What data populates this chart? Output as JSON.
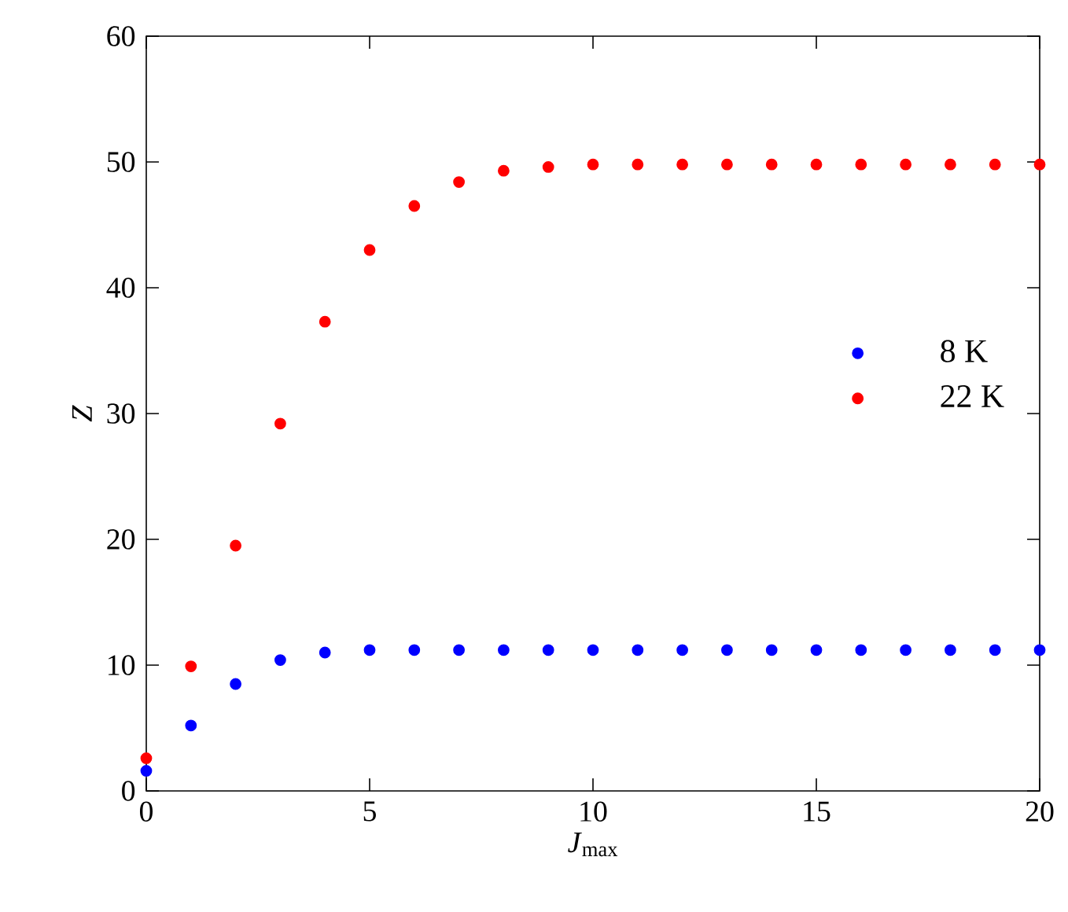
{
  "chart_data": {
    "type": "scatter",
    "xlabel": "*J*$_{max}$",
    "ylabel": "*Z*",
    "x": [
      0,
      1,
      2,
      3,
      4,
      5,
      6,
      7,
      8,
      9,
      10,
      11,
      12,
      13,
      14,
      15,
      16,
      17,
      18,
      19,
      20
    ],
    "series": [
      {
        "name": "8 K",
        "color": "#0000ff",
        "values": [
          1.6,
          5.2,
          8.5,
          10.4,
          11.0,
          11.2,
          11.2,
          11.2,
          11.2,
          11.2,
          11.2,
          11.2,
          11.2,
          11.2,
          11.2,
          11.2,
          11.2,
          11.2,
          11.2,
          11.2,
          11.2
        ]
      },
      {
        "name": "22 K",
        "color": "#ff0000",
        "values": [
          2.6,
          9.9,
          19.5,
          29.2,
          37.3,
          43.0,
          46.5,
          48.4,
          49.3,
          49.6,
          49.8,
          49.8,
          49.8,
          49.8,
          49.8,
          49.8,
          49.8,
          49.8,
          49.8,
          49.8,
          49.8
        ]
      }
    ],
    "xlim": [
      0,
      20
    ],
    "ylim": [
      0,
      60
    ],
    "xticks": [
      0,
      5,
      10,
      15,
      20
    ],
    "yticks": [
      0,
      10,
      20,
      30,
      40,
      50,
      60
    ],
    "marker": "circle",
    "legend": "right",
    "grid": false
  }
}
